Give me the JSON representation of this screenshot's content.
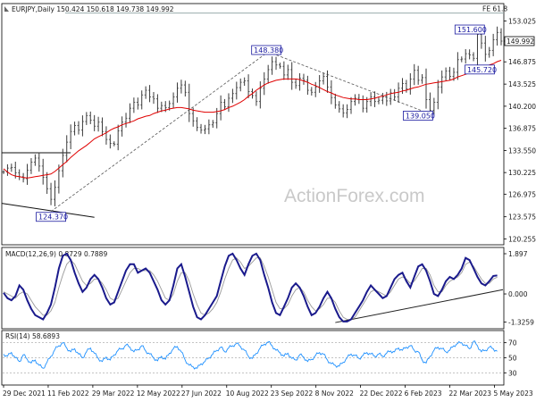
{
  "chart_data": {
    "type": "line",
    "symbol": "EURJPY",
    "timeframe": "Daily",
    "header": "EURJPY,Daily  150.424 150.618 149.738 149.992",
    "last_price": "149.992",
    "watermark": "ActionForex.com",
    "x_ticks": [
      "29 Dec 2021",
      "11 Feb 2022",
      "29 Mar 2022",
      "12 May 2022",
      "27 Jun 2022",
      "10 Aug 2022",
      "23 Sep 2022",
      "8 Nov 2022",
      "22 Dec 2022",
      "6 Feb 2023",
      "22 Mar 2023",
      "5 May 2023"
    ],
    "price_panel": {
      "y_ticks": [
        153.025,
        149.992,
        146.875,
        143.525,
        140.2,
        136.875,
        133.55,
        130.225,
        126.975,
        123.575,
        120.255
      ],
      "y_tick_labels": [
        "153.025",
        "149.992",
        "146.875",
        "143.525",
        "140.200",
        "136.875",
        "133.550",
        "130.225",
        "126.975",
        "123.575",
        "120.255"
      ],
      "ylim": [
        119.5,
        155.5
      ],
      "fe_label": "FE 61.8",
      "fe_level": 154.2,
      "annotations": [
        {
          "text": "124.370",
          "x": 12,
          "y": 124.37
        },
        {
          "text": "148.380",
          "x": 67,
          "y": 148.38
        },
        {
          "text": "139.050",
          "x": 108,
          "y": 139.05
        },
        {
          "text": "145.720",
          "x": 120,
          "y": 145.72
        },
        {
          "text": "151.600",
          "x": 122,
          "y": 151.6
        }
      ],
      "close": [
        130.3,
        130.9,
        131.0,
        130.2,
        129.6,
        129.3,
        130.6,
        131.8,
        132.4,
        131.2,
        129.5,
        127.8,
        126.2,
        128.0,
        130.5,
        132.8,
        134.8,
        136.4,
        137.3,
        136.6,
        137.9,
        138.8,
        138.1,
        137.2,
        137.8,
        136.4,
        135.2,
        134.6,
        134.5,
        136.5,
        137.8,
        138.4,
        139.9,
        140.8,
        140.4,
        141.9,
        142.6,
        141.6,
        141.3,
        139.9,
        140.3,
        140.0,
        140.6,
        141.6,
        142.9,
        143.4,
        142.3,
        139.1,
        138.0,
        137.0,
        136.6,
        136.8,
        137.4,
        137.7,
        139.1,
        140.8,
        140.1,
        141.4,
        142.1,
        143.0,
        143.8,
        144.0,
        142.4,
        141.8,
        140.9,
        142.9,
        144.3,
        145.7,
        146.9,
        146.4,
        146.2,
        144.9,
        145.7,
        143.8,
        143.3,
        144.4,
        144.1,
        142.6,
        142.3,
        143.1,
        144.0,
        144.7,
        143.1,
        141.5,
        140.4,
        139.8,
        139.2,
        139.7,
        140.9,
        141.4,
        141.2,
        139.9,
        140.9,
        141.6,
        140.9,
        141.1,
        141.6,
        141.0,
        142.2,
        141.6,
        142.9,
        143.6,
        142.8,
        144.3,
        145.6,
        144.1,
        144.5,
        141.2,
        139.6,
        140.8,
        143.1,
        144.6,
        145.5,
        144.7,
        145.3,
        147.2,
        147.3,
        148.1,
        147.9,
        147.4,
        151.0,
        149.7,
        148.0,
        148.6,
        150.2,
        151.3,
        149.99
      ],
      "ma": [
        130.8,
        130.3,
        129.9,
        129.7,
        129.6,
        129.5,
        129.4,
        129.5,
        129.6,
        129.7,
        129.8,
        129.9,
        130.0,
        130.4,
        130.9,
        131.4,
        131.9,
        132.5,
        133.0,
        133.5,
        133.9,
        134.3,
        134.8,
        135.3,
        135.6,
        135.9,
        136.2,
        136.6,
        136.9,
        137.1,
        137.4,
        137.6,
        137.8,
        138.0,
        138.3,
        138.5,
        138.7,
        138.8,
        139.1,
        139.3,
        139.5,
        139.6,
        139.8,
        139.9,
        140.0,
        140.0,
        139.9,
        139.8,
        139.6,
        139.5,
        139.4,
        139.3,
        139.3,
        139.3,
        139.4,
        139.5,
        139.7,
        140.0,
        140.2,
        140.5,
        140.8,
        141.2,
        141.7,
        142.1,
        142.6,
        143.0,
        143.4,
        143.7,
        143.9,
        144.1,
        144.2,
        144.3,
        144.3,
        144.3,
        144.3,
        144.2,
        144.0,
        143.8,
        143.5,
        143.3,
        143.0,
        142.7,
        142.4,
        142.2,
        141.9,
        141.7,
        141.5,
        141.4,
        141.3,
        141.3,
        141.2,
        141.2,
        141.2,
        141.3,
        141.4,
        141.6,
        141.7,
        141.9,
        142.1,
        142.2,
        142.3,
        142.5,
        142.6,
        142.8,
        143.0,
        143.1,
        143.3,
        143.5,
        143.6,
        143.7,
        143.8,
        143.9,
        144.0,
        144.1,
        144.3,
        144.6,
        144.8,
        145.0,
        145.2,
        145.4,
        145.6,
        145.9,
        146.1,
        146.4,
        146.6,
        146.9,
        147.1
      ]
    },
    "macd_panel": {
      "title": "MACD(12,26,9) 0.8729 0.7889",
      "y_tick_labels": [
        "1.897",
        "0.000",
        "-1.3259"
      ],
      "ylim": [
        -1.6,
        2.15
      ],
      "macd": [
        0.05,
        -0.2,
        -0.3,
        -0.1,
        0.4,
        0.2,
        -0.3,
        -0.7,
        -1.0,
        -1.1,
        -1.2,
        -0.9,
        -0.5,
        0.3,
        1.2,
        1.8,
        1.9,
        1.6,
        1.0,
        0.5,
        0.1,
        0.3,
        0.7,
        0.9,
        0.7,
        0.3,
        -0.2,
        -0.5,
        -0.4,
        0.1,
        0.6,
        1.1,
        1.4,
        1.4,
        1.0,
        1.1,
        1.2,
        1.0,
        0.6,
        0.2,
        -0.3,
        -0.5,
        -0.3,
        0.4,
        1.2,
        1.4,
        0.8,
        0.1,
        -0.6,
        -1.1,
        -1.2,
        -1.0,
        -0.7,
        -0.4,
        -0.1,
        0.6,
        1.3,
        1.8,
        1.9,
        1.6,
        1.2,
        0.9,
        1.4,
        1.8,
        1.9,
        1.6,
        0.9,
        0.3,
        -0.4,
        -0.9,
        -1.0,
        -0.6,
        -0.2,
        0.3,
        0.5,
        0.3,
        -0.1,
        -0.6,
        -1.0,
        -0.9,
        -0.6,
        -0.2,
        0.1,
        -0.2,
        -0.7,
        -1.1,
        -1.3,
        -1.3,
        -1.2,
        -0.9,
        -0.6,
        -0.3,
        0.1,
        0.4,
        0.2,
        0.0,
        -0.2,
        -0.1,
        0.3,
        0.7,
        0.9,
        1.0,
        0.6,
        0.3,
        0.8,
        1.3,
        1.4,
        1.1,
        0.6,
        0.0,
        -0.1,
        0.2,
        0.6,
        0.8,
        0.7,
        0.9,
        1.2,
        1.7,
        1.6,
        1.2,
        0.8,
        0.5,
        0.4,
        0.6,
        0.85,
        0.87
      ],
      "signal": [
        0.1,
        0.0,
        -0.1,
        -0.2,
        0.0,
        0.1,
        0.0,
        -0.3,
        -0.6,
        -0.8,
        -1.0,
        -1.0,
        -0.8,
        -0.4,
        0.3,
        0.9,
        1.4,
        1.6,
        1.4,
        1.0,
        0.6,
        0.4,
        0.5,
        0.7,
        0.7,
        0.5,
        0.2,
        -0.2,
        -0.3,
        -0.2,
        0.2,
        0.6,
        1.0,
        1.2,
        1.2,
        1.1,
        1.1,
        1.1,
        0.9,
        0.6,
        0.2,
        -0.2,
        -0.3,
        0.0,
        0.6,
        1.0,
        1.0,
        0.6,
        0.0,
        -0.5,
        -0.9,
        -1.0,
        -0.9,
        -0.7,
        -0.4,
        0.1,
        0.7,
        1.2,
        1.6,
        1.7,
        1.5,
        1.2,
        1.3,
        1.5,
        1.7,
        1.7,
        1.3,
        0.8,
        0.2,
        -0.4,
        -0.7,
        -0.7,
        -0.5,
        -0.1,
        0.2,
        0.3,
        0.1,
        -0.3,
        -0.6,
        -0.8,
        -0.7,
        -0.5,
        -0.2,
        -0.2,
        -0.4,
        -0.8,
        -1.1,
        -1.2,
        -1.2,
        -1.1,
        -0.8,
        -0.5,
        -0.2,
        0.1,
        0.2,
        0.1,
        0.0,
        -0.1,
        0.1,
        0.4,
        0.7,
        0.8,
        0.7,
        0.5,
        0.6,
        0.9,
        1.2,
        1.2,
        0.9,
        0.4,
        0.1,
        0.1,
        0.4,
        0.6,
        0.7,
        0.8,
        1.0,
        1.4,
        1.5,
        1.3,
        1.0,
        0.7,
        0.5,
        0.5,
        0.7,
        0.79
      ]
    },
    "rsi_panel": {
      "title": "RSI(14) 58.6893",
      "y_tick_labels": [
        "70",
        "50",
        "30"
      ],
      "ylim": [
        15,
        85
      ],
      "levels": [
        70,
        50,
        30
      ],
      "rsi": [
        55,
        52,
        57,
        50,
        45,
        54,
        48,
        43,
        47,
        40,
        36,
        44,
        52,
        61,
        66,
        70,
        63,
        58,
        62,
        55,
        50,
        58,
        63,
        56,
        49,
        45,
        51,
        47,
        54,
        60,
        62,
        67,
        64,
        58,
        61,
        66,
        59,
        55,
        50,
        46,
        52,
        48,
        56,
        62,
        65,
        58,
        47,
        40,
        38,
        36,
        42,
        45,
        50,
        55,
        60,
        64,
        58,
        63,
        66,
        69,
        65,
        60,
        52,
        49,
        56,
        63,
        68,
        71,
        66,
        60,
        57,
        52,
        56,
        49,
        47,
        54,
        51,
        45,
        48,
        53,
        57,
        55,
        47,
        42,
        40,
        39,
        44,
        50,
        55,
        53,
        49,
        53,
        57,
        55,
        52,
        55,
        52,
        56,
        59,
        58,
        63,
        60,
        64,
        66,
        60,
        58,
        47,
        43,
        52,
        60,
        64,
        62,
        58,
        60,
        66,
        69,
        70,
        66,
        62,
        72,
        66,
        58,
        60,
        64,
        62,
        58.7
      ]
    }
  }
}
